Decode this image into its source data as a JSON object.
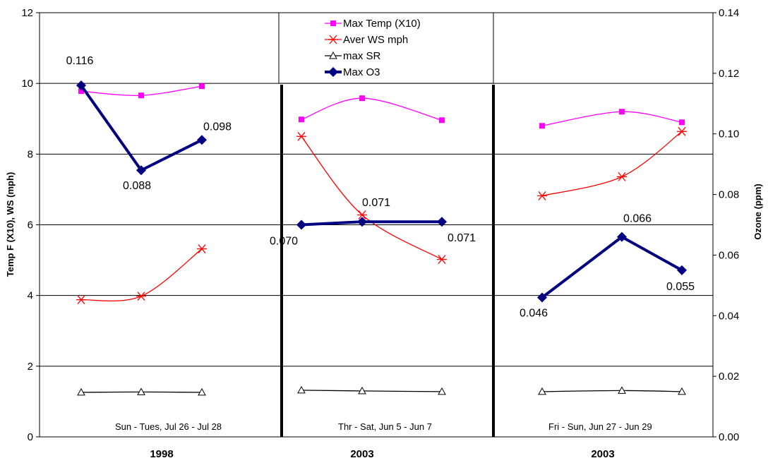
{
  "chart_data": {
    "type": "line",
    "y_left": {
      "label": "Temp F (X10), WS (mph)",
      "range": [
        0,
        12
      ],
      "ticks": [
        "0",
        "2",
        "4",
        "6",
        "8",
        "10",
        "12"
      ]
    },
    "y_right": {
      "label": "Ozone (ppm)",
      "range": [
        0,
        0.14
      ],
      "ticks": [
        "0.00",
        "0.02",
        "0.04",
        "0.06",
        "0.08",
        "0.10",
        "0.12",
        "0.14"
      ]
    },
    "grid": true,
    "legend_position": "top-center",
    "groups": [
      {
        "year": "1998",
        "period": "Sun - Tues,  Jul 26 - Jul 28"
      },
      {
        "year": "2003",
        "period": "Thr - Sat,  Jun 5 - Jun 7"
      },
      {
        "year": "2003",
        "period": "Fri - Sun,  Jun 27 - Jun 29"
      }
    ],
    "series": [
      {
        "name": "Max Temp (X10)",
        "axis": "left",
        "color": "#ff00ff",
        "marker": "square",
        "smooth": true,
        "groups": [
          [
            9.78,
            9.66,
            9.92
          ],
          [
            8.98,
            9.58,
            8.96
          ],
          [
            8.8,
            9.2,
            8.9
          ]
        ]
      },
      {
        "name": "Aver WS mph",
        "axis": "left",
        "color": "#ff0000",
        "marker": "asterisk",
        "smooth": true,
        "groups": [
          [
            3.88,
            3.98,
            5.32
          ],
          [
            8.5,
            6.28,
            5.02
          ],
          [
            6.82,
            7.36,
            8.64
          ]
        ]
      },
      {
        "name": "max SR",
        "axis": "left",
        "color": "#000000",
        "marker": "triangle",
        "smooth": true,
        "groups": [
          [
            1.26,
            1.27,
            1.26
          ],
          [
            1.32,
            1.3,
            1.28
          ],
          [
            1.28,
            1.31,
            1.28
          ]
        ]
      },
      {
        "name": "Max O3",
        "axis": "right",
        "color": "#000080",
        "marker": "diamond",
        "smooth": false,
        "groups": [
          [
            0.116,
            0.088,
            0.098
          ],
          [
            0.07,
            0.071,
            0.071
          ],
          [
            0.046,
            0.066,
            0.055
          ]
        ],
        "labels": [
          [
            "0.116",
            "0.088",
            "0.098"
          ],
          [
            "0.070",
            "0.071",
            "0.071"
          ],
          [
            "0.046",
            "0.066",
            "0.055"
          ]
        ]
      }
    ]
  }
}
